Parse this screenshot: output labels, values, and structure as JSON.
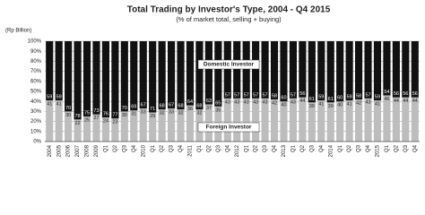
{
  "chart_data": {
    "type": "stacked_bar",
    "title": "Total Trading by Investor's Type, 2004 - Q4 2015",
    "subtitle": "(% of market total, selling + buying)",
    "y_axis_label": "(Rp Billion)",
    "categories": [
      "2004",
      "2005",
      "2006",
      "2007",
      "2008",
      "2009",
      "Q1",
      "Q2",
      "Q3",
      "Q4",
      "2010",
      "Q1",
      "Q2",
      "Q3",
      "Q4",
      "2011",
      "Q1",
      "Q2",
      "Q3",
      "Q4",
      "2012",
      "Q1",
      "Q2",
      "Q3",
      "Q4",
      "2013",
      "Q1",
      "Q2",
      "Q3",
      "Q4",
      "2014",
      "Q1",
      "Q2",
      "Q3",
      "Q4",
      "2015",
      "Q1",
      "Q2",
      "Q3",
      "Q4"
    ],
    "series": [
      {
        "name": "Foreign Investor",
        "color": "#bdbdbd",
        "values": [
          41,
          41,
          30,
          22,
          25,
          27,
          24,
          23,
          30,
          31,
          33,
          29,
          32,
          33,
          32,
          36,
          32,
          37,
          35,
          43,
          43,
          43,
          43,
          43,
          42,
          40,
          43,
          44,
          39,
          41,
          39,
          40,
          41,
          42,
          43,
          41,
          46,
          44,
          44,
          44
        ]
      },
      {
        "name": "Domestic Investor",
        "color": "#111111",
        "values": [
          59,
          59,
          70,
          78,
          75,
          73,
          76,
          77,
          70,
          69,
          67,
          71,
          68,
          67,
          68,
          64,
          68,
          63,
          65,
          57,
          57,
          57,
          57,
          57,
          58,
          60,
          57,
          56,
          61,
          59,
          61,
          60,
          59,
          58,
          57,
          59,
          54,
          56,
          56,
          56
        ]
      }
    ],
    "ylim": [
      0,
      100
    ],
    "yticks": [
      {
        "value": 0,
        "label": "0%"
      },
      {
        "value": 10,
        "label": "10%"
      },
      {
        "value": 20,
        "label": "20%"
      },
      {
        "value": 30,
        "label": "30%"
      },
      {
        "value": 40,
        "label": "40%"
      },
      {
        "value": 50,
        "label": "50%"
      },
      {
        "value": 60,
        "label": "60%"
      },
      {
        "value": 70,
        "label": "70%"
      },
      {
        "value": 80,
        "label": "80%"
      },
      {
        "value": 90,
        "label": "90%"
      },
      {
        "value": 100,
        "label": "100%"
      }
    ],
    "grid": true
  }
}
